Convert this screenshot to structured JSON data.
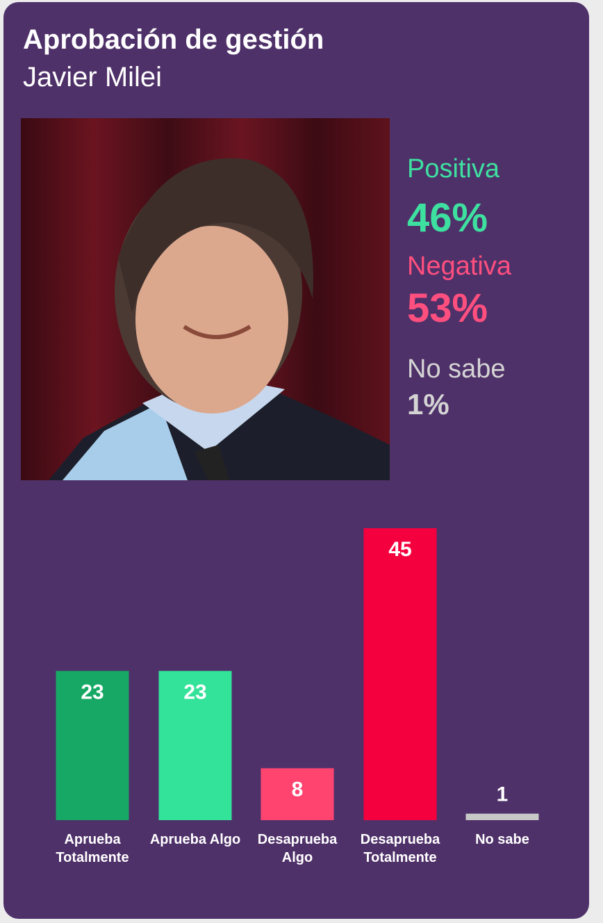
{
  "header": {
    "title": "Aprobación de gestión",
    "subtitle": "Javier Milei"
  },
  "summary": [
    {
      "label": "Positiva",
      "value": "46%"
    },
    {
      "label": "Negativa",
      "value": "53%"
    },
    {
      "label": "No sabe",
      "value": "1%"
    }
  ],
  "chart_data": {
    "type": "bar",
    "categories": [
      "Aprueba Totalmente",
      "Aprueba Algo",
      "Desaprueba Algo",
      "Desaprueba Totalmente",
      "No sabe"
    ],
    "values": [
      23,
      23,
      8,
      45,
      1
    ],
    "colors": [
      "#17a865",
      "#33e39a",
      "#ff4470",
      "#f5003f",
      "#c8c8c8"
    ]
  }
}
